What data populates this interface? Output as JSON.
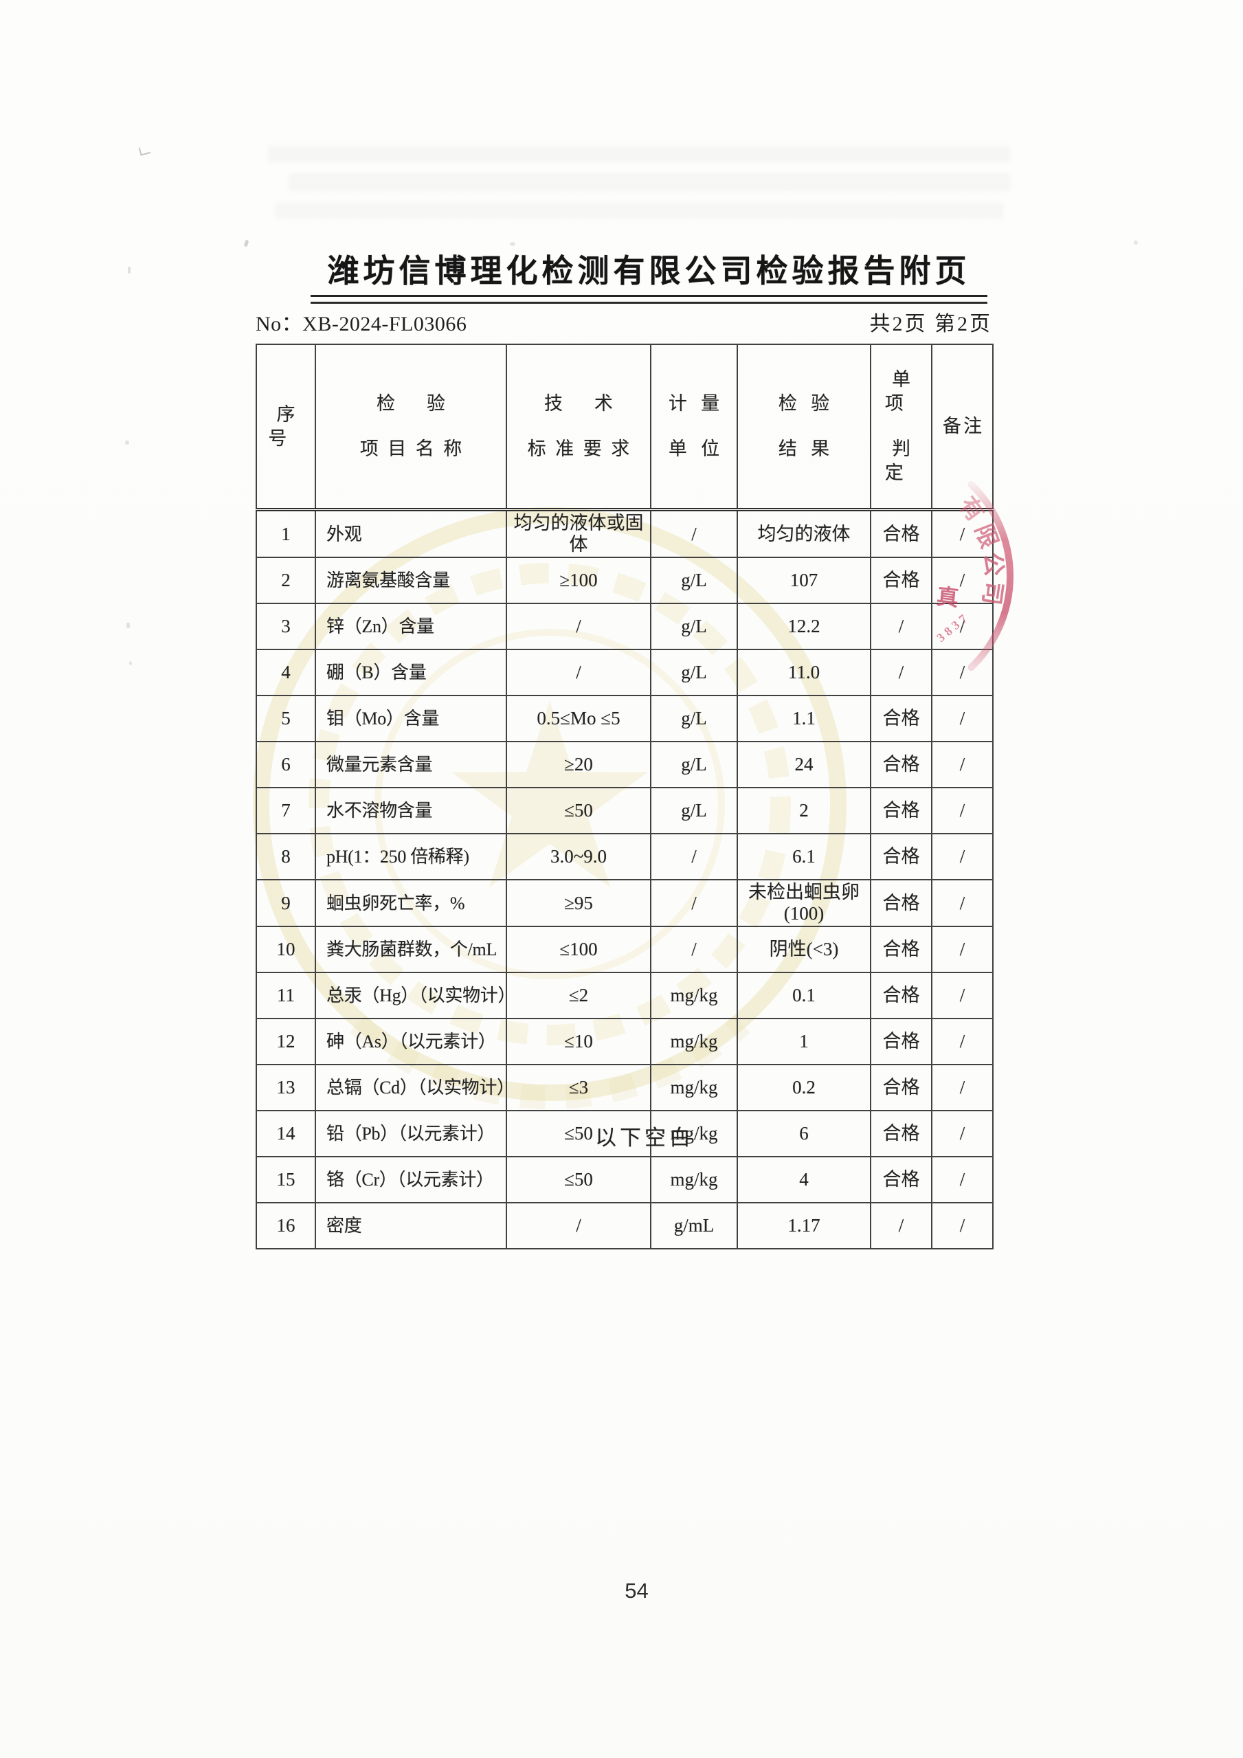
{
  "document": {
    "title": "潍坊信博理化检测有限公司检验报告附页",
    "report_no_label": "No：",
    "report_no": "XB-2024-FL03066",
    "pagination": "共2页 第2页",
    "below_table_note": "以下空白",
    "page_number": "54"
  },
  "table": {
    "header": {
      "seq": "序号",
      "item_line1": "检验",
      "item_line2": "项目名称",
      "standard_line1": "技术",
      "standard_line2": "标准要求",
      "unit_line1": "计量",
      "unit_line2": "单位",
      "result_line1": "检验",
      "result_line2": "结果",
      "judgment_line1": "单项",
      "judgment_line2": "判定",
      "remark": "备注"
    },
    "rows": [
      {
        "no": "1",
        "item": "外观",
        "standard": "均匀的液体或固\n体",
        "unit": "/",
        "result": "均匀的液体",
        "judgment": "合格",
        "remark": "/"
      },
      {
        "no": "2",
        "item": "游离氨基酸含量",
        "standard": "≥100",
        "unit": "g/L",
        "result": "107",
        "judgment": "合格",
        "remark": "/"
      },
      {
        "no": "3",
        "item": "锌（Zn）含量",
        "standard": "/",
        "unit": "g/L",
        "result": "12.2",
        "judgment": "/",
        "remark": "/"
      },
      {
        "no": "4",
        "item": "硼（B）含量",
        "standard": "/",
        "unit": "g/L",
        "result": "11.0",
        "judgment": "/",
        "remark": "/"
      },
      {
        "no": "5",
        "item": "钼（Mo）含量",
        "standard": "0.5≤Mo ≤5",
        "unit": "g/L",
        "result": "1.1",
        "judgment": "合格",
        "remark": "/"
      },
      {
        "no": "6",
        "item": "微量元素含量",
        "standard": "≥20",
        "unit": "g/L",
        "result": "24",
        "judgment": "合格",
        "remark": "/"
      },
      {
        "no": "7",
        "item": "水不溶物含量",
        "standard": "≤50",
        "unit": "g/L",
        "result": "2",
        "judgment": "合格",
        "remark": "/"
      },
      {
        "no": "8",
        "item": "pH(1：250 倍稀释)",
        "standard": "3.0~9.0",
        "unit": "/",
        "result": "6.1",
        "judgment": "合格",
        "remark": "/"
      },
      {
        "no": "9",
        "item": "蛔虫卵死亡率，%",
        "standard": "≥95",
        "unit": "/",
        "result": "未检出蛔虫卵\n(100)",
        "judgment": "合格",
        "remark": "/"
      },
      {
        "no": "10",
        "item": "粪大肠菌群数，个/mL",
        "standard": "≤100",
        "unit": "/",
        "result": "阴性(<3)",
        "judgment": "合格",
        "remark": "/"
      },
      {
        "no": "11",
        "item": "总汞（Hg）（以实物计）",
        "standard": "≤2",
        "unit": "mg/kg",
        "result": "0.1",
        "judgment": "合格",
        "remark": "/"
      },
      {
        "no": "12",
        "item": "砷（As）（以元素计）",
        "standard": "≤10",
        "unit": "mg/kg",
        "result": "1",
        "judgment": "合格",
        "remark": "/"
      },
      {
        "no": "13",
        "item": "总镉（Cd）（以实物计）",
        "standard": "≤3",
        "unit": "mg/kg",
        "result": "0.2",
        "judgment": "合格",
        "remark": "/"
      },
      {
        "no": "14",
        "item": "铅（Pb）（以元素计）",
        "standard": "≤50",
        "unit": "mg/kg",
        "result": "6",
        "judgment": "合格",
        "remark": "/"
      },
      {
        "no": "15",
        "item": "铬（Cr）（以元素计）",
        "standard": "≤50",
        "unit": "mg/kg",
        "result": "4",
        "judgment": "合格",
        "remark": "/"
      },
      {
        "no": "16",
        "item": "密度",
        "standard": "/",
        "unit": "g/mL",
        "result": "1.17",
        "judgment": "/",
        "remark": "/"
      }
    ]
  },
  "stamp": {
    "chars": [
      "有",
      "限",
      "公",
      "司"
    ],
    "partial_char": "真",
    "serial": "3837",
    "color": "#cf5a72"
  }
}
